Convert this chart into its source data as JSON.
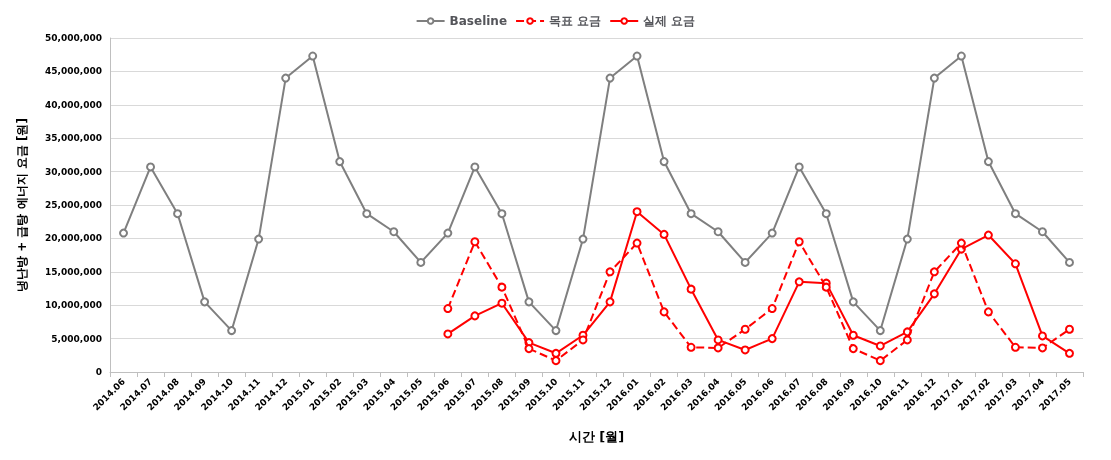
{
  "chart_data": {
    "type": "line",
    "xlabel": "시간 [월]",
    "ylabel": "냉난방 + 급탕 에너지 요금 [원]",
    "categories": [
      "2014.06",
      "2014.07",
      "2014.08",
      "2014.09",
      "2014.10",
      "2014.11",
      "2014.12",
      "2015.01",
      "2015.02",
      "2015.03",
      "2015.04",
      "2015.05",
      "2015.06",
      "2015.07",
      "2015.08",
      "2015.09",
      "2015.10",
      "2015.11",
      "2015.12",
      "2016.01",
      "2016.02",
      "2016.03",
      "2016.04",
      "2016.05",
      "2016.06",
      "2016.07",
      "2016.08",
      "2016.09",
      "2016.10",
      "2016.11",
      "2016.12",
      "2017.01",
      "2017.02",
      "2017.03",
      "2017.04",
      "2017.05"
    ],
    "series": [
      {
        "name": "Baseline",
        "color": "#7f7f7f",
        "line_style": "solid",
        "values": [
          20800000,
          30700000,
          23700000,
          10500000,
          6200000,
          19900000,
          44000000,
          47300000,
          31500000,
          23700000,
          21000000,
          16400000,
          20800000,
          30700000,
          23700000,
          10500000,
          6200000,
          19900000,
          44000000,
          47300000,
          31500000,
          23700000,
          21000000,
          16400000,
          20800000,
          30700000,
          23700000,
          10500000,
          6200000,
          19900000,
          44000000,
          47300000,
          31500000,
          23700000,
          21000000,
          16400000
        ]
      },
      {
        "name": "목표 요금",
        "color": "#ff0000",
        "line_style": "dashed",
        "values": [
          null,
          null,
          null,
          null,
          null,
          null,
          null,
          null,
          null,
          null,
          null,
          null,
          9500000,
          19500000,
          12700000,
          3500000,
          1700000,
          4800000,
          15000000,
          19300000,
          9000000,
          3700000,
          3600000,
          6400000,
          9500000,
          19500000,
          12700000,
          3500000,
          1700000,
          4800000,
          15000000,
          19300000,
          9000000,
          3700000,
          3600000,
          6400000
        ]
      },
      {
        "name": "실제 요금",
        "color": "#ff0000",
        "line_style": "solid",
        "values": [
          null,
          null,
          null,
          null,
          null,
          null,
          null,
          null,
          null,
          null,
          null,
          null,
          5700000,
          8400000,
          10300000,
          4400000,
          2800000,
          5500000,
          10500000,
          24000000,
          20600000,
          12400000,
          4800000,
          3300000,
          5000000,
          13500000,
          13300000,
          5500000,
          3900000,
          6000000,
          11700000,
          18400000,
          20500000,
          16200000,
          5400000,
          2800000
        ]
      }
    ],
    "ylim": [
      0,
      50000000
    ],
    "yticks": [
      {
        "value": 0,
        "label": "0"
      },
      {
        "value": 5000000,
        "label": "5,000,000"
      },
      {
        "value": 10000000,
        "label": "10,000,000"
      },
      {
        "value": 15000000,
        "label": "15,000,000"
      },
      {
        "value": 20000000,
        "label": "20,000,000"
      },
      {
        "value": 25000000,
        "label": "25,000,000"
      },
      {
        "value": 30000000,
        "label": "30,000,000"
      },
      {
        "value": 35000000,
        "label": "35,000,000"
      },
      {
        "value": 40000000,
        "label": "40,000,000"
      },
      {
        "value": 45000000,
        "label": "45,000,000"
      },
      {
        "value": 50000000,
        "label": "50,000,000"
      }
    ],
    "grid": "y",
    "legend": "top",
    "marker": "circle"
  }
}
